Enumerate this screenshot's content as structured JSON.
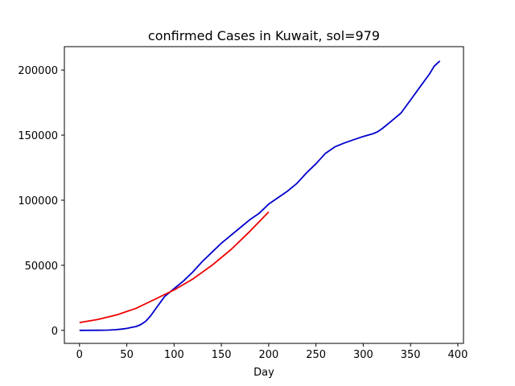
{
  "chart_data": {
    "type": "line",
    "title": "confirmed Cases in Kuwait, sol=979",
    "xlabel": "Day",
    "ylabel": "",
    "xlim": [
      -16,
      406
    ],
    "ylim": [
      -10000,
      218000
    ],
    "grid": false,
    "x_ticks": [
      0,
      50,
      100,
      150,
      200,
      250,
      300,
      350,
      400
    ],
    "y_ticks": [
      0,
      50000,
      100000,
      150000,
      200000
    ],
    "x_tick_labels": [
      "0",
      "50",
      "100",
      "150",
      "200",
      "250",
      "300",
      "350",
      "400"
    ],
    "y_tick_labels": [
      "0",
      "50000",
      "100000",
      "150000",
      "200000"
    ],
    "series": [
      {
        "color": "#0000cc",
        "x": [
          0,
          20,
          30,
          38,
          45,
          50,
          55,
          60,
          65,
          70,
          75,
          80,
          85,
          90,
          100,
          110,
          120,
          130,
          140,
          150,
          160,
          170,
          180,
          190,
          200,
          210,
          220,
          230,
          240,
          250,
          260,
          270,
          280,
          290,
          300,
          310,
          315,
          320,
          330,
          340,
          345,
          350,
          360,
          370,
          375,
          381
        ],
        "y": [
          0,
          100,
          200,
          500,
          1000,
          1500,
          2300,
          3000,
          4500,
          7000,
          11000,
          16000,
          21000,
          26000,
          32000,
          38000,
          45000,
          53000,
          60000,
          67000,
          73000,
          79000,
          85000,
          90000,
          97000,
          102000,
          107000,
          113000,
          121000,
          128000,
          136000,
          141000,
          144000,
          146500,
          149000,
          151000,
          152500,
          155000,
          161000,
          167000,
          172000,
          177000,
          187000,
          197000,
          203000,
          207000
        ]
      },
      {
        "color": "#ee0000",
        "x": [
          0,
          20,
          40,
          60,
          80,
          100,
          120,
          140,
          160,
          180,
          200
        ],
        "y": [
          6000,
          8500,
          12000,
          17000,
          24000,
          31000,
          39500,
          50000,
          62000,
          76000,
          91000
        ]
      }
    ]
  }
}
